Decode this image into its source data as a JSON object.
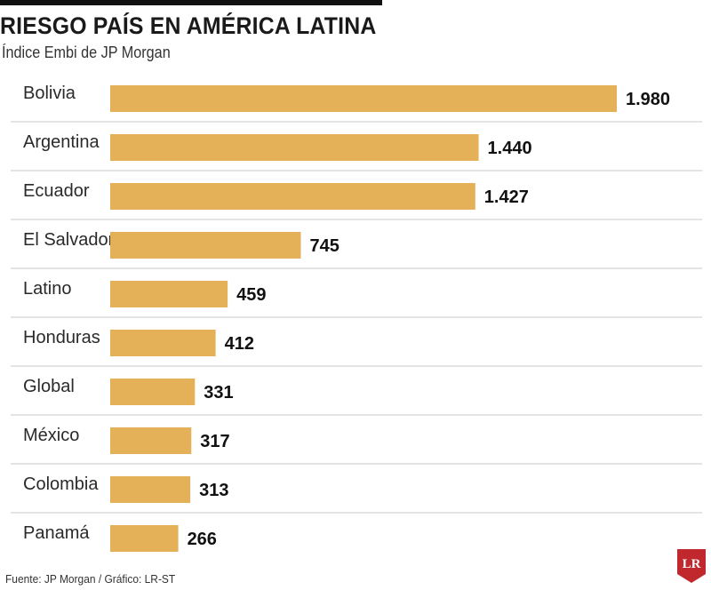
{
  "title": "RIESGO PAÍS EN AMÉRICA LATINA",
  "subtitle": "Índice Embi de JP Morgan",
  "source": "Fuente: JP Morgan / Gráfico: LR-ST",
  "logo_text": "LR",
  "colors": {
    "bar": "#e5b158",
    "separator": "#c8c8c8",
    "logo": "#c0282d",
    "rule": "#111111"
  },
  "chart_data": {
    "type": "bar",
    "orientation": "horizontal",
    "title": "RIESGO PAÍS EN AMÉRICA LATINA",
    "subtitle": "Índice Embi de JP Morgan",
    "categories": [
      "Bolivia",
      "Argentina",
      "Ecuador",
      "El Salvador",
      "Latino",
      "Honduras",
      "Global",
      "México",
      "Colombia",
      "Panamá"
    ],
    "values": [
      1980,
      1440,
      1427,
      745,
      459,
      412,
      331,
      317,
      313,
      266
    ],
    "value_labels": [
      "1.980",
      "1.440",
      "1.427",
      "745",
      "459",
      "412",
      "331",
      "317",
      "313",
      "266"
    ],
    "xlabel": "",
    "ylabel": "",
    "xlim": [
      0,
      1980
    ],
    "grid": false,
    "legend": "none"
  }
}
